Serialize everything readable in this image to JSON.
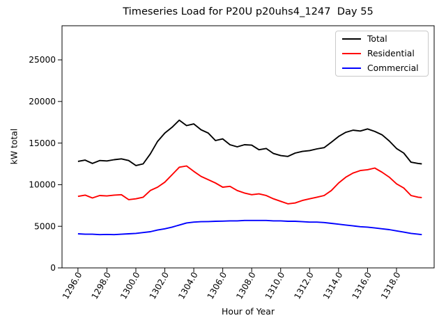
{
  "chart_data": {
    "type": "line",
    "title": "Timeseries Load for P20U p20uhs4_1247  Day 55",
    "xlabel": "Hour of Year",
    "ylabel": "kW total",
    "grid": false,
    "legend_position": "upper right",
    "xlim": [
      1294.9,
      1320.6
    ],
    "ylim": [
      0,
      29100
    ],
    "x_tick_values": [
      1296,
      1298,
      1300,
      1302,
      1304,
      1306,
      1308,
      1310,
      1312,
      1314,
      1316,
      1318
    ],
    "x_tick_labels": [
      "1296.0",
      "1298.0",
      "1300.0",
      "1302.0",
      "1304.0",
      "1306.0",
      "1308.0",
      "1310.0",
      "1312.0",
      "1314.0",
      "1316.0",
      "1318.0"
    ],
    "y_tick_values": [
      0,
      5000,
      10000,
      15000,
      20000,
      25000
    ],
    "y_tick_labels": [
      "0",
      "5000",
      "10000",
      "15000",
      "20000",
      "25000"
    ],
    "x": [
      1296.0,
      1296.5,
      1297.0,
      1297.5,
      1298.0,
      1298.5,
      1299.0,
      1299.5,
      1300.0,
      1300.5,
      1301.0,
      1301.5,
      1302.0,
      1302.5,
      1303.0,
      1303.5,
      1304.0,
      1304.5,
      1305.0,
      1305.5,
      1306.0,
      1306.5,
      1307.0,
      1307.5,
      1308.0,
      1308.5,
      1309.0,
      1309.5,
      1310.0,
      1310.5,
      1311.0,
      1311.5,
      1312.0,
      1312.5,
      1313.0,
      1313.5,
      1314.0,
      1314.5,
      1315.0,
      1315.5,
      1316.0,
      1316.5,
      1317.0,
      1317.5,
      1318.0,
      1318.5,
      1319.0,
      1319.5,
      1319.75
    ],
    "series": [
      {
        "name": "Total",
        "color": "#000000",
        "values": [
          12800,
          12950,
          12550,
          12900,
          12850,
          13000,
          13100,
          12900,
          12300,
          12500,
          13700,
          15200,
          16200,
          16900,
          17750,
          17100,
          17300,
          16600,
          16200,
          15300,
          15500,
          14800,
          14550,
          14800,
          14750,
          14200,
          14350,
          13750,
          13500,
          13400,
          13800,
          14000,
          14100,
          14300,
          14450,
          15100,
          15800,
          16300,
          16550,
          16450,
          16700,
          16400,
          16000,
          15250,
          14350,
          13800,
          12700,
          12550,
          12500
        ]
      },
      {
        "name": "Residential",
        "color": "#ff0000",
        "values": [
          8600,
          8750,
          8400,
          8700,
          8650,
          8750,
          8800,
          8200,
          8300,
          8500,
          9300,
          9700,
          10300,
          11200,
          12100,
          12250,
          11600,
          11000,
          10600,
          10200,
          9700,
          9800,
          9300,
          9000,
          8800,
          8900,
          8700,
          8300,
          8000,
          7700,
          7800,
          8100,
          8300,
          8500,
          8700,
          9300,
          10200,
          10900,
          11400,
          11700,
          11800,
          12000,
          11500,
          10900,
          10100,
          9600,
          8700,
          8500,
          8450
        ]
      },
      {
        "name": "Commercial",
        "color": "#0000ff",
        "values": [
          4100,
          4050,
          4050,
          4000,
          4020,
          4000,
          4050,
          4100,
          4150,
          4250,
          4350,
          4550,
          4700,
          4900,
          5150,
          5400,
          5500,
          5550,
          5570,
          5600,
          5620,
          5650,
          5650,
          5700,
          5700,
          5700,
          5700,
          5650,
          5650,
          5600,
          5600,
          5550,
          5500,
          5500,
          5450,
          5350,
          5250,
          5150,
          5050,
          4950,
          4900,
          4800,
          4700,
          4600,
          4450,
          4300,
          4150,
          4050,
          4000
        ]
      }
    ]
  }
}
